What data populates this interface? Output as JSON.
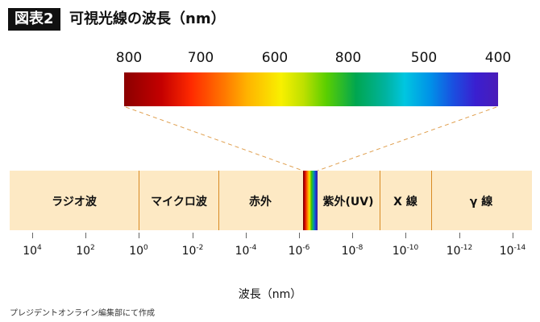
{
  "header": {
    "badge": "図表2",
    "title": "可視光線の波長（nm）"
  },
  "spectrum_labels": [
    "800",
    "700",
    "600",
    "800",
    "500",
    "400"
  ],
  "regions": [
    "ラジオ波",
    "マイクロ波",
    "赤外",
    "紫外(UV)",
    "X 線",
    "γ 線"
  ],
  "ticks": [
    {
      "base": "10",
      "exp": "4"
    },
    {
      "base": "10",
      "exp": "2"
    },
    {
      "base": "10",
      "exp": "0"
    },
    {
      "base": "10",
      "exp": "-2"
    },
    {
      "base": "10",
      "exp": "-4"
    },
    {
      "base": "10",
      "exp": "-6"
    },
    {
      "base": "10",
      "exp": "-8"
    },
    {
      "base": "10",
      "exp": "-10"
    },
    {
      "base": "10",
      "exp": "-12"
    },
    {
      "base": "10",
      "exp": "-14"
    }
  ],
  "axis_label": "波長（nm）",
  "credit": "プレジデントオンライン編集部にて作成",
  "colors": {
    "band_fill": "#fde9c4",
    "divider": "#d88a24",
    "dashed_line": "#e0a050",
    "badge_bg": "#111111"
  }
}
